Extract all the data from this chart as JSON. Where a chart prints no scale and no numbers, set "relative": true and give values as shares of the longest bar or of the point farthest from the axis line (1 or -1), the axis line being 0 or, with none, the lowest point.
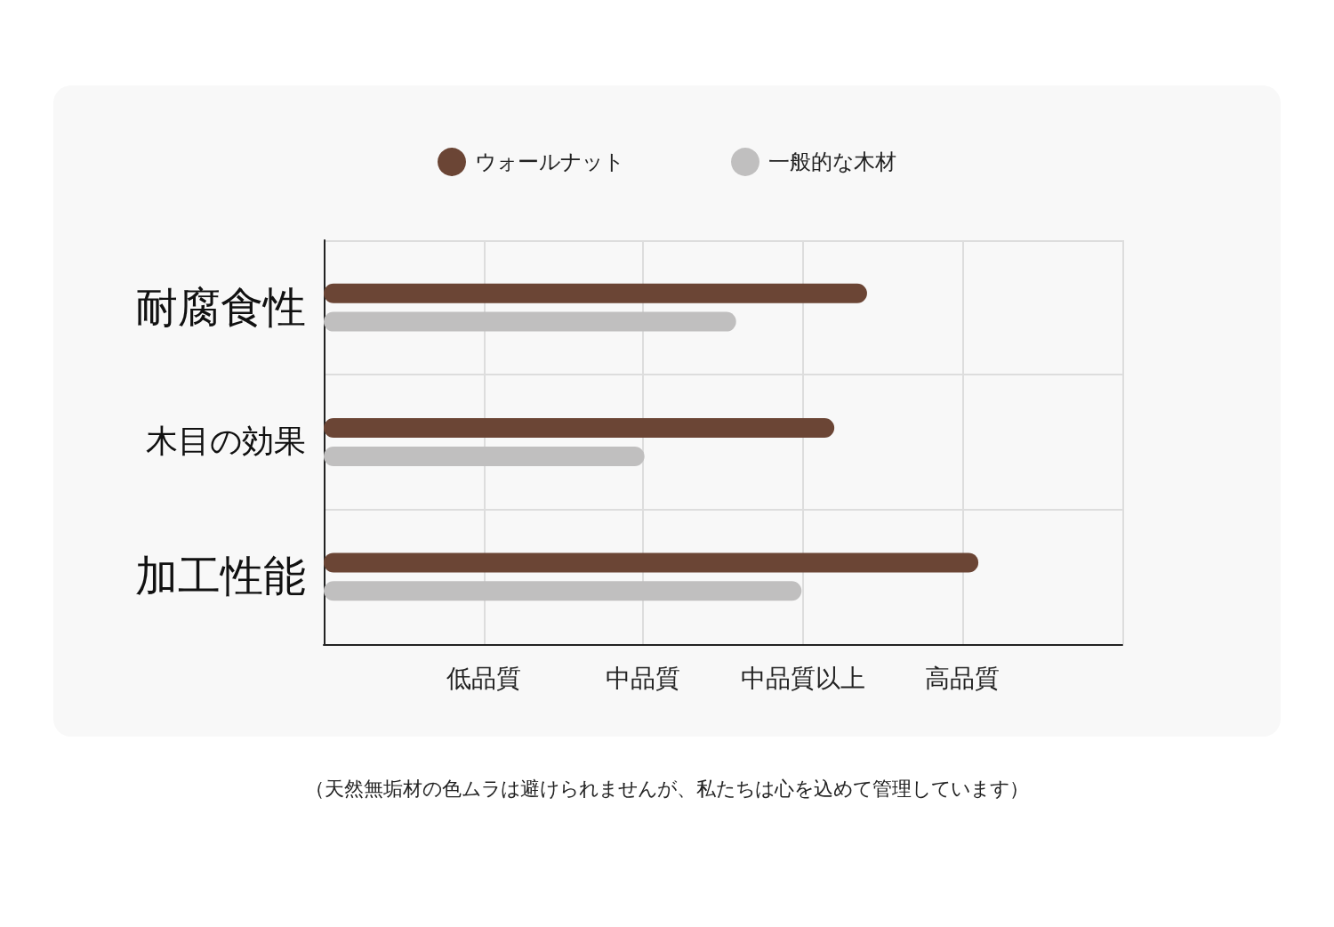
{
  "chart_data": {
    "type": "bar",
    "orientation": "horizontal",
    "relative": true,
    "categories": [
      "耐腐食性",
      "木目の効果",
      "加工性能"
    ],
    "series": [
      {
        "name": "ウォールナット",
        "color": "#6b4535",
        "values": [
          0.83,
          0.78,
          1
        ]
      },
      {
        "name": "一般的な木材",
        "color": "#c0bfbf",
        "values": [
          0.63,
          0.49,
          0.73
        ]
      }
    ],
    "grid": true,
    "legend": "top",
    "annotations": [
      "低品質",
      "中品質",
      "中品質以上",
      "高品質",
      "（天然無垢材の色ムラは避けられませんが、私たちは心を込めて管理しています）"
    ]
  }
}
